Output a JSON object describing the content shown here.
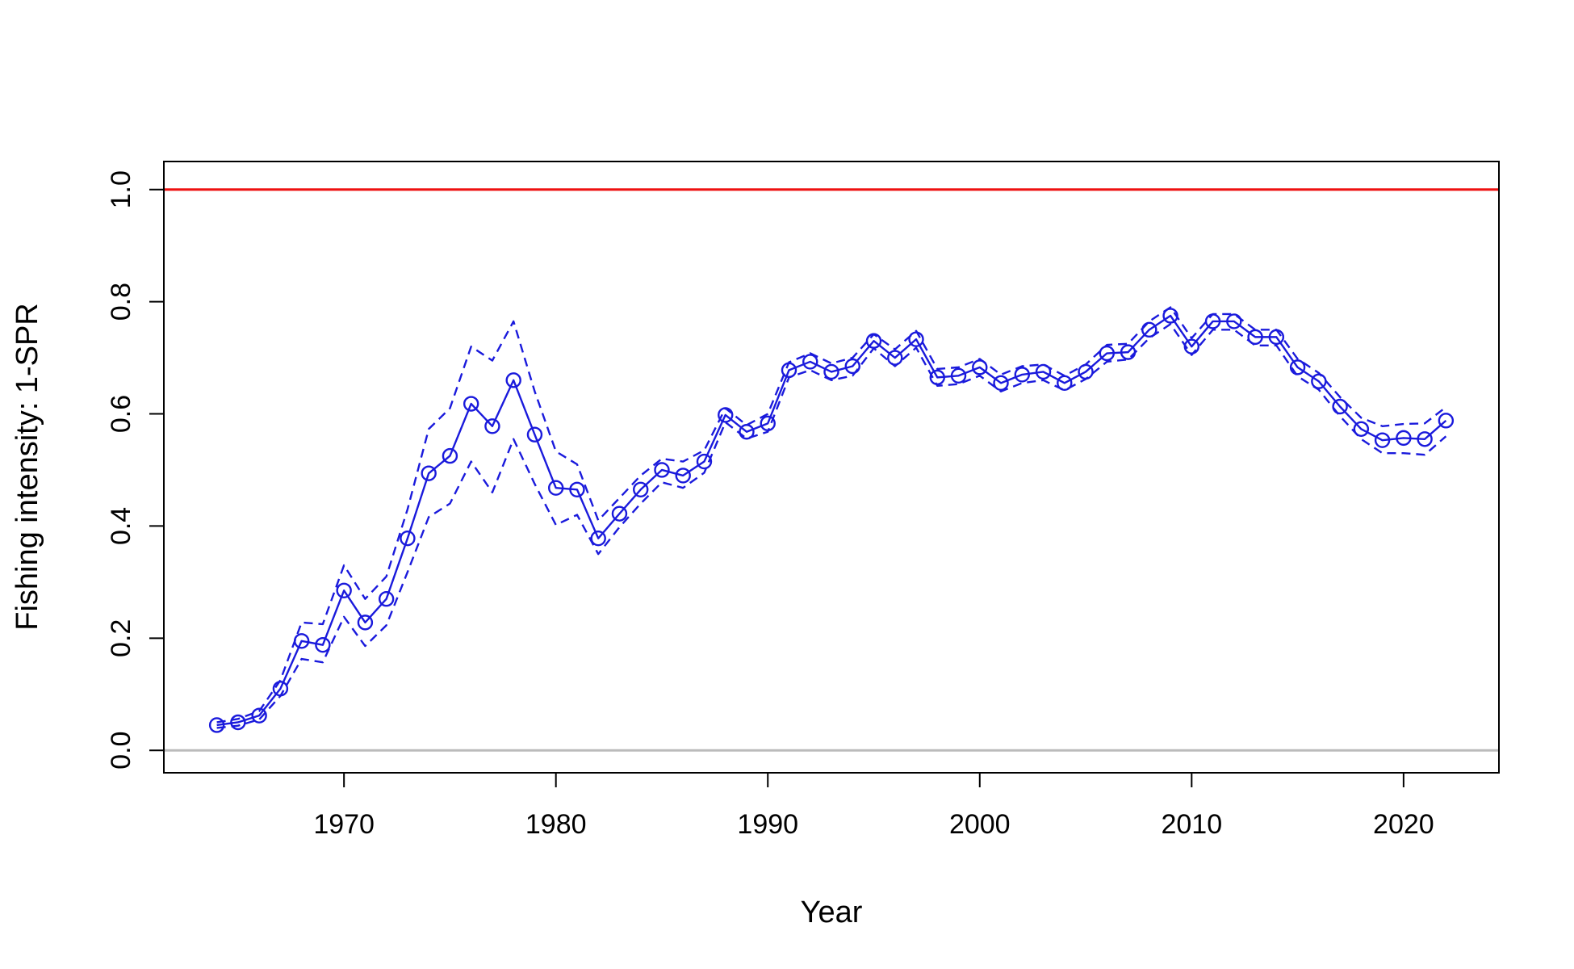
{
  "chart_data": {
    "type": "line",
    "title": "",
    "xlabel": "Year",
    "ylabel": "Fishing intensity: 1-SPR",
    "xlim": [
      1961.5,
      2024.5
    ],
    "ylim": [
      -0.04,
      1.05
    ],
    "xticks": [
      1970,
      1980,
      1990,
      2000,
      2010,
      2020
    ],
    "yticks": [
      0.0,
      0.2,
      0.4,
      0.6,
      0.8,
      1.0
    ],
    "ytick_labels": [
      "0.0",
      "0.2",
      "0.4",
      "0.6",
      "0.8",
      "1.0"
    ],
    "grid": false,
    "legend": "none",
    "reference_lines": [
      {
        "y": 1.0,
        "color": "#ee1111"
      },
      {
        "y": 0.0,
        "color": "#bbbbbb"
      }
    ],
    "series_color": "#1a1adc",
    "x": [
      1964,
      1965,
      1966,
      1967,
      1968,
      1969,
      1970,
      1971,
      1972,
      1973,
      1974,
      1975,
      1976,
      1977,
      1978,
      1979,
      1980,
      1981,
      1982,
      1983,
      1984,
      1985,
      1986,
      1987,
      1988,
      1989,
      1990,
      1991,
      1992,
      1993,
      1994,
      1995,
      1996,
      1997,
      1998,
      1999,
      2000,
      2001,
      2002,
      2003,
      2004,
      2005,
      2006,
      2007,
      2008,
      2009,
      2010,
      2011,
      2012,
      2013,
      2014,
      2015,
      2016,
      2017,
      2018,
      2019,
      2020,
      2021,
      2022
    ],
    "series": [
      {
        "role": "estimate",
        "style": "solid-with-circles",
        "values": [
          0.045,
          0.05,
          0.062,
          0.11,
          0.195,
          0.188,
          0.285,
          0.228,
          0.27,
          0.378,
          0.494,
          0.525,
          0.618,
          0.578,
          0.66,
          0.563,
          0.468,
          0.465,
          0.378,
          0.422,
          0.465,
          0.5,
          0.49,
          0.515,
          0.598,
          0.568,
          0.583,
          0.678,
          0.693,
          0.675,
          0.685,
          0.73,
          0.7,
          0.733,
          0.665,
          0.668,
          0.683,
          0.655,
          0.67,
          0.675,
          0.655,
          0.675,
          0.708,
          0.71,
          0.75,
          0.775,
          0.72,
          0.765,
          0.765,
          0.737,
          0.737,
          0.683,
          0.658,
          0.613,
          0.573,
          0.553,
          0.557,
          0.555,
          0.588
        ]
      },
      {
        "role": "upper-interval",
        "style": "dashed",
        "values": [
          0.05,
          0.056,
          0.07,
          0.125,
          0.228,
          0.225,
          0.33,
          0.27,
          0.31,
          0.43,
          0.573,
          0.61,
          0.72,
          0.695,
          0.765,
          0.64,
          0.533,
          0.51,
          0.41,
          0.45,
          0.49,
          0.52,
          0.515,
          0.535,
          0.61,
          0.58,
          0.6,
          0.692,
          0.708,
          0.69,
          0.7,
          0.742,
          0.715,
          0.748,
          0.68,
          0.683,
          0.698,
          0.67,
          0.685,
          0.688,
          0.668,
          0.688,
          0.723,
          0.725,
          0.765,
          0.79,
          0.735,
          0.778,
          0.778,
          0.75,
          0.75,
          0.698,
          0.673,
          0.63,
          0.593,
          0.578,
          0.582,
          0.583,
          0.612
        ]
      },
      {
        "role": "lower-interval",
        "style": "dashed",
        "values": [
          0.04,
          0.044,
          0.055,
          0.097,
          0.163,
          0.157,
          0.238,
          0.186,
          0.223,
          0.318,
          0.416,
          0.44,
          0.515,
          0.46,
          0.555,
          0.475,
          0.402,
          0.42,
          0.35,
          0.398,
          0.44,
          0.478,
          0.468,
          0.495,
          0.585,
          0.556,
          0.568,
          0.665,
          0.678,
          0.66,
          0.668,
          0.717,
          0.685,
          0.718,
          0.65,
          0.653,
          0.668,
          0.64,
          0.655,
          0.66,
          0.642,
          0.662,
          0.693,
          0.697,
          0.735,
          0.76,
          0.705,
          0.75,
          0.75,
          0.722,
          0.722,
          0.667,
          0.643,
          0.596,
          0.555,
          0.53,
          0.53,
          0.527,
          0.56
        ]
      }
    ]
  }
}
